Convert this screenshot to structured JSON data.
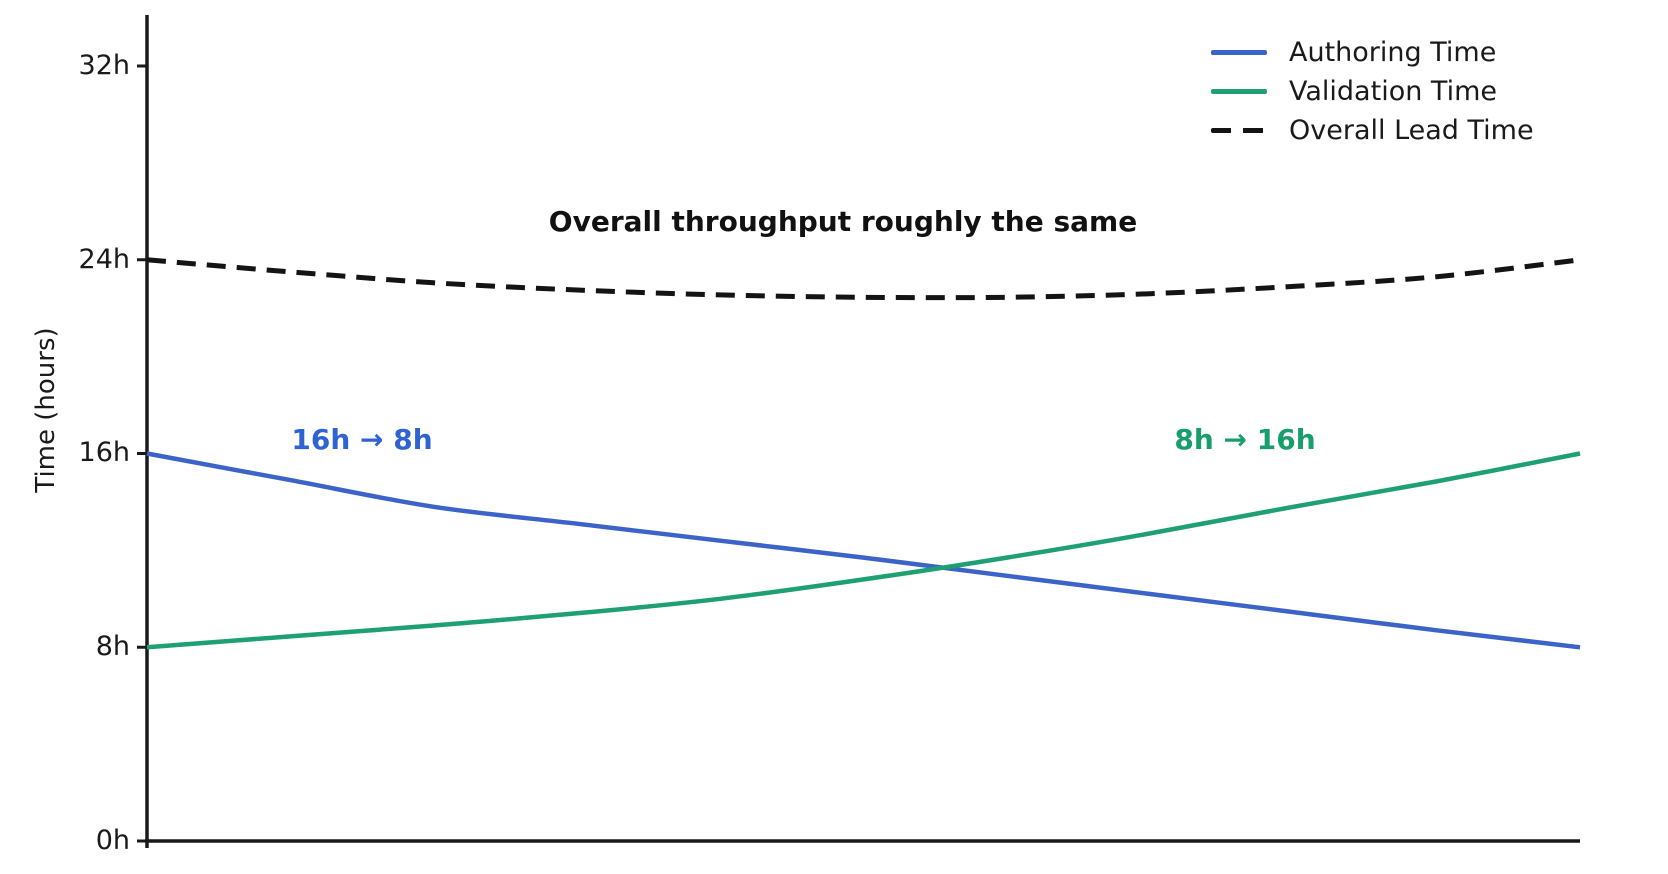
{
  "chart_data": {
    "type": "line",
    "title": "",
    "xlabel": "",
    "ylabel": "Time (hours)",
    "ylim": [
      0,
      34
    ],
    "grid": false,
    "legend_position": "upper right",
    "legend_frame": false,
    "axis_color": "#1a1a1a",
    "background_color": "#ffffff",
    "x": [
      0,
      0.1,
      0.2,
      0.3,
      0.4,
      0.5,
      0.6,
      0.7,
      0.8,
      0.9,
      1.0
    ],
    "yticks": [
      {
        "value": 0,
        "label": "0h"
      },
      {
        "value": 8,
        "label": "8h"
      },
      {
        "value": 16,
        "label": "16h"
      },
      {
        "value": 24,
        "label": "24h"
      },
      {
        "value": 32,
        "label": "32h"
      }
    ],
    "series": [
      {
        "name": "Overall Lead Time",
        "color": "#141414",
        "style": "dashed",
        "line_width": 5,
        "values": [
          24.0,
          23.5,
          23.05,
          22.75,
          22.55,
          22.45,
          22.45,
          22.6,
          22.9,
          23.3,
          24.0
        ]
      },
      {
        "name": "Authoring Time",
        "color": "#3c64c8",
        "style": "solid",
        "line_width": 4.5,
        "values": [
          16.0,
          14.9,
          13.8,
          13.1,
          12.4,
          11.7,
          10.95,
          10.2,
          9.45,
          8.7,
          8.0
        ]
      },
      {
        "name": "Validation Time",
        "color": "#1ea073",
        "style": "solid",
        "line_width": 4.5,
        "values": [
          8.0,
          8.45,
          8.9,
          9.4,
          10.0,
          10.8,
          11.7,
          12.7,
          13.8,
          14.85,
          16.0
        ]
      }
    ],
    "legend_order": [
      1,
      2,
      0
    ],
    "annotations": [
      {
        "id": "throughput",
        "text": "Overall throughput roughly the same",
        "color": "#111111"
      },
      {
        "id": "authoring-change",
        "text": "16h → 8h",
        "color": "#2f62d3"
      },
      {
        "id": "validation-change",
        "text": "8h → 16h",
        "color": "#179e6b"
      }
    ]
  }
}
